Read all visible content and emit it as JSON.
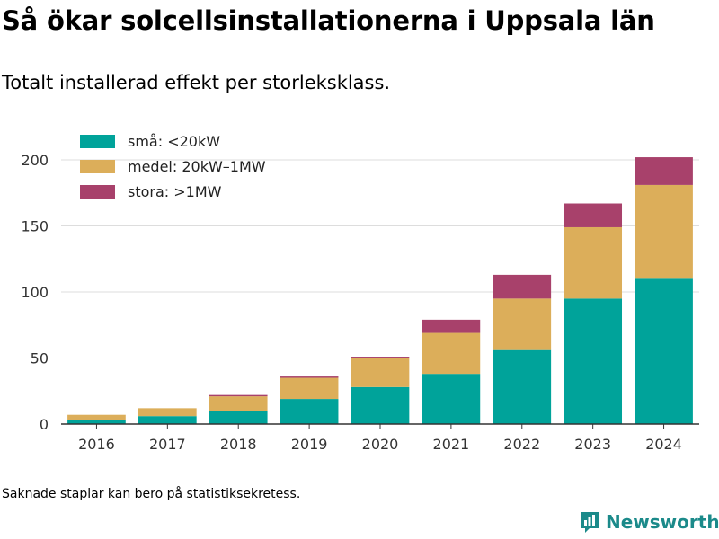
{
  "title": "Så ökar solcellsinstallationerna i Uppsala län",
  "subtitle": "Totalt installerad effekt per storleksklass.",
  "footnote": "Saknade staplar kan bero på statistiksekretess.",
  "brand": {
    "name": "Newsworthy",
    "icon": "newsworthy-logo-icon",
    "color": "#1b8a8a"
  },
  "chart_data": {
    "type": "bar",
    "stacked": true,
    "title": "",
    "xlabel": "",
    "ylabel": "",
    "categories": [
      "2016",
      "2017",
      "2018",
      "2019",
      "2020",
      "2021",
      "2022",
      "2023",
      "2024"
    ],
    "series": [
      {
        "name": "små: <20kW",
        "color": "#00a39a",
        "values": [
          3,
          6,
          10,
          19,
          28,
          38,
          56,
          95,
          110
        ]
      },
      {
        "name": "medel: 20kW–1MW",
        "color": "#dcae5a",
        "values": [
          4,
          6,
          11,
          16,
          22,
          31,
          39,
          54,
          71
        ]
      },
      {
        "name": "stora: >1MW",
        "color": "#a8416b",
        "values": [
          0,
          0,
          1,
          1,
          1,
          10,
          18,
          18,
          21
        ]
      }
    ],
    "ylim": [
      0,
      220
    ],
    "yticks": [
      0,
      50,
      100,
      150,
      200
    ],
    "grid": true,
    "legend": "top-left"
  }
}
